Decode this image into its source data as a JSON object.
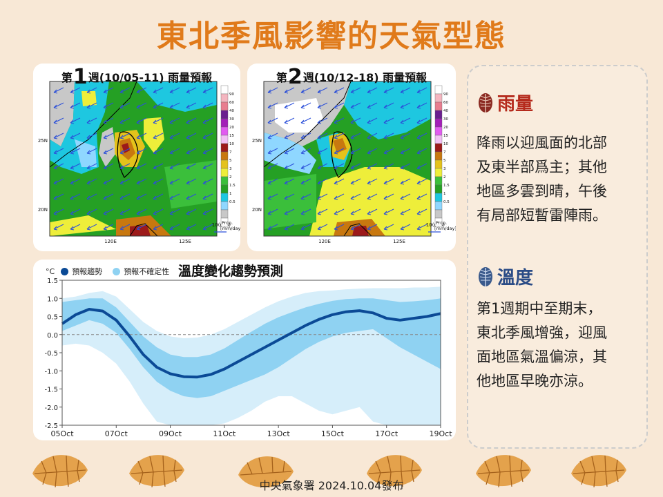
{
  "page": {
    "title": "東北季風影響的天氣型態",
    "footer": "中央氣象署 2024.10.04發布"
  },
  "map1": {
    "prefix": "第",
    "week_num": "1",
    "suffix": "週(10/05-11) 雨量預報",
    "lat_labels": [
      "25N",
      "20N"
    ],
    "lon_labels": [
      "120E",
      "125E"
    ],
    "wind_label": "10(m/s)",
    "prcp_label": "Prcp.",
    "unit_label": "[mm/day]"
  },
  "map2": {
    "prefix": "第",
    "week_num": "2",
    "suffix": "週(10/12-18) 雨量預報",
    "lat_labels": [
      "25N",
      "20N"
    ],
    "lon_labels": [
      "120E",
      "125E"
    ],
    "wind_label": "10(m/s)",
    "prcp_label": "Prcp.",
    "unit_label": "[mm/day]"
  },
  "colorbar": {
    "labels": [
      "90",
      "60",
      "40",
      "30",
      "20",
      "15",
      "10",
      "7",
      "5",
      "3",
      "2",
      "1.5",
      "1",
      "0.5"
    ],
    "colors": [
      "#ffffff",
      "#f4b6c0",
      "#e87d8f",
      "#6a1f8f",
      "#a31fb8",
      "#e15cf0",
      "#f1c0f4",
      "#9c1a1a",
      "#c8780f",
      "#e4c21b",
      "#eeee3a",
      "#3bbf3b",
      "#25a024",
      "#1ec7e0",
      "#8fd7ff",
      "#c8c8c8",
      "#ffffff"
    ]
  },
  "chart": {
    "title": "溫度變化趨勢預測",
    "unit": "°C",
    "legend_trend": "預報趨勢",
    "legend_uncertainty": "預報不確定性",
    "trend_color": "#0b4a96",
    "band_inner_color": "#8fd2f2",
    "band_outer_color": "#d6eefa"
  },
  "chart_data": {
    "type": "line",
    "title": "溫度變化趨勢預測",
    "ylabel": "°C",
    "ylim": [
      -2.5,
      1.5
    ],
    "yticks": [
      "1.5",
      "1.0",
      "0.5",
      "0.0",
      "-0.5",
      "-1.0",
      "-1.5",
      "-2.0",
      "-2.5"
    ],
    "xticks": [
      "05Oct",
      "07Oct",
      "09Oct",
      "11Oct",
      "13Oct",
      "15Oct",
      "17Oct",
      "19Oct"
    ],
    "x": [
      0,
      0.5,
      1,
      1.5,
      2,
      2.5,
      3,
      3.5,
      4,
      4.5,
      5,
      5.5,
      6,
      6.5,
      7,
      7.5,
      8,
      8.5,
      9,
      9.5,
      10,
      10.5,
      11,
      11.5,
      12,
      12.5,
      13,
      13.5,
      14
    ],
    "series": [
      {
        "name": "預報趨勢",
        "values": [
          0.3,
          0.55,
          0.7,
          0.65,
          0.4,
          -0.05,
          -0.55,
          -0.9,
          -1.08,
          -1.16,
          -1.17,
          -1.1,
          -0.95,
          -0.75,
          -0.55,
          -0.35,
          -0.15,
          0.05,
          0.25,
          0.42,
          0.55,
          0.63,
          0.66,
          0.6,
          0.45,
          0.4,
          0.45,
          0.5,
          0.58
        ]
      },
      {
        "name": "預報不確定性",
        "upper": [
          0.9,
          0.95,
          1.0,
          1.0,
          0.75,
          0.35,
          -0.05,
          -0.35,
          -0.55,
          -0.62,
          -0.62,
          -0.55,
          -0.38,
          -0.15,
          0.08,
          0.3,
          0.48,
          0.62,
          0.75,
          0.85,
          0.93,
          0.98,
          1.0,
          1.0,
          0.95,
          0.9,
          0.92,
          0.95,
          1.0
        ],
        "lower": [
          0.1,
          0.25,
          0.4,
          0.3,
          0.05,
          -0.4,
          -0.9,
          -1.3,
          -1.55,
          -1.7,
          -1.75,
          -1.7,
          -1.55,
          -1.4,
          -1.25,
          -1.1,
          -0.9,
          -0.65,
          -0.4,
          -0.2,
          -0.05,
          0.05,
          0.1,
          0.15,
          -0.1,
          -0.35,
          -0.55,
          -0.75,
          -0.95
        ]
      },
      {
        "name": "outer",
        "upper": [
          1.0,
          1.05,
          1.15,
          1.2,
          1.05,
          0.7,
          0.35,
          0.1,
          -0.05,
          -0.1,
          -0.08,
          0.0,
          0.15,
          0.35,
          0.55,
          0.75,
          0.92,
          1.05,
          1.15,
          1.2,
          1.22,
          1.25,
          1.27,
          1.28,
          1.28,
          1.28,
          1.3,
          1.3,
          1.32
        ],
        "lower": [
          -0.3,
          -0.25,
          -0.3,
          -0.5,
          -0.8,
          -1.3,
          -1.9,
          -2.4,
          -2.55,
          -2.55,
          -2.55,
          -2.55,
          -2.45,
          -2.3,
          -2.1,
          -1.85,
          -1.7,
          -1.7,
          -1.9,
          -2.1,
          -2.2,
          -2.1,
          -2.0,
          -2.4,
          -2.55,
          -2.55,
          -2.55,
          -2.55,
          -2.55
        ]
      }
    ]
  },
  "sidebar": {
    "rain_heading": "雨量",
    "rain_lines": [
      "降雨以迎風面的北部",
      "及東半部爲主；其他",
      "地區多雲到晴，午後",
      "有局部短暫雷陣雨。"
    ],
    "temp_heading": "溫度",
    "temp_lines": [
      "第1週期中至期末，",
      "東北季風增強，迎風",
      "面地區氣溫偏涼，其",
      "他地區早晚亦涼。"
    ],
    "rain_color": "#b52a1c",
    "temp_color": "#2b4c86"
  }
}
